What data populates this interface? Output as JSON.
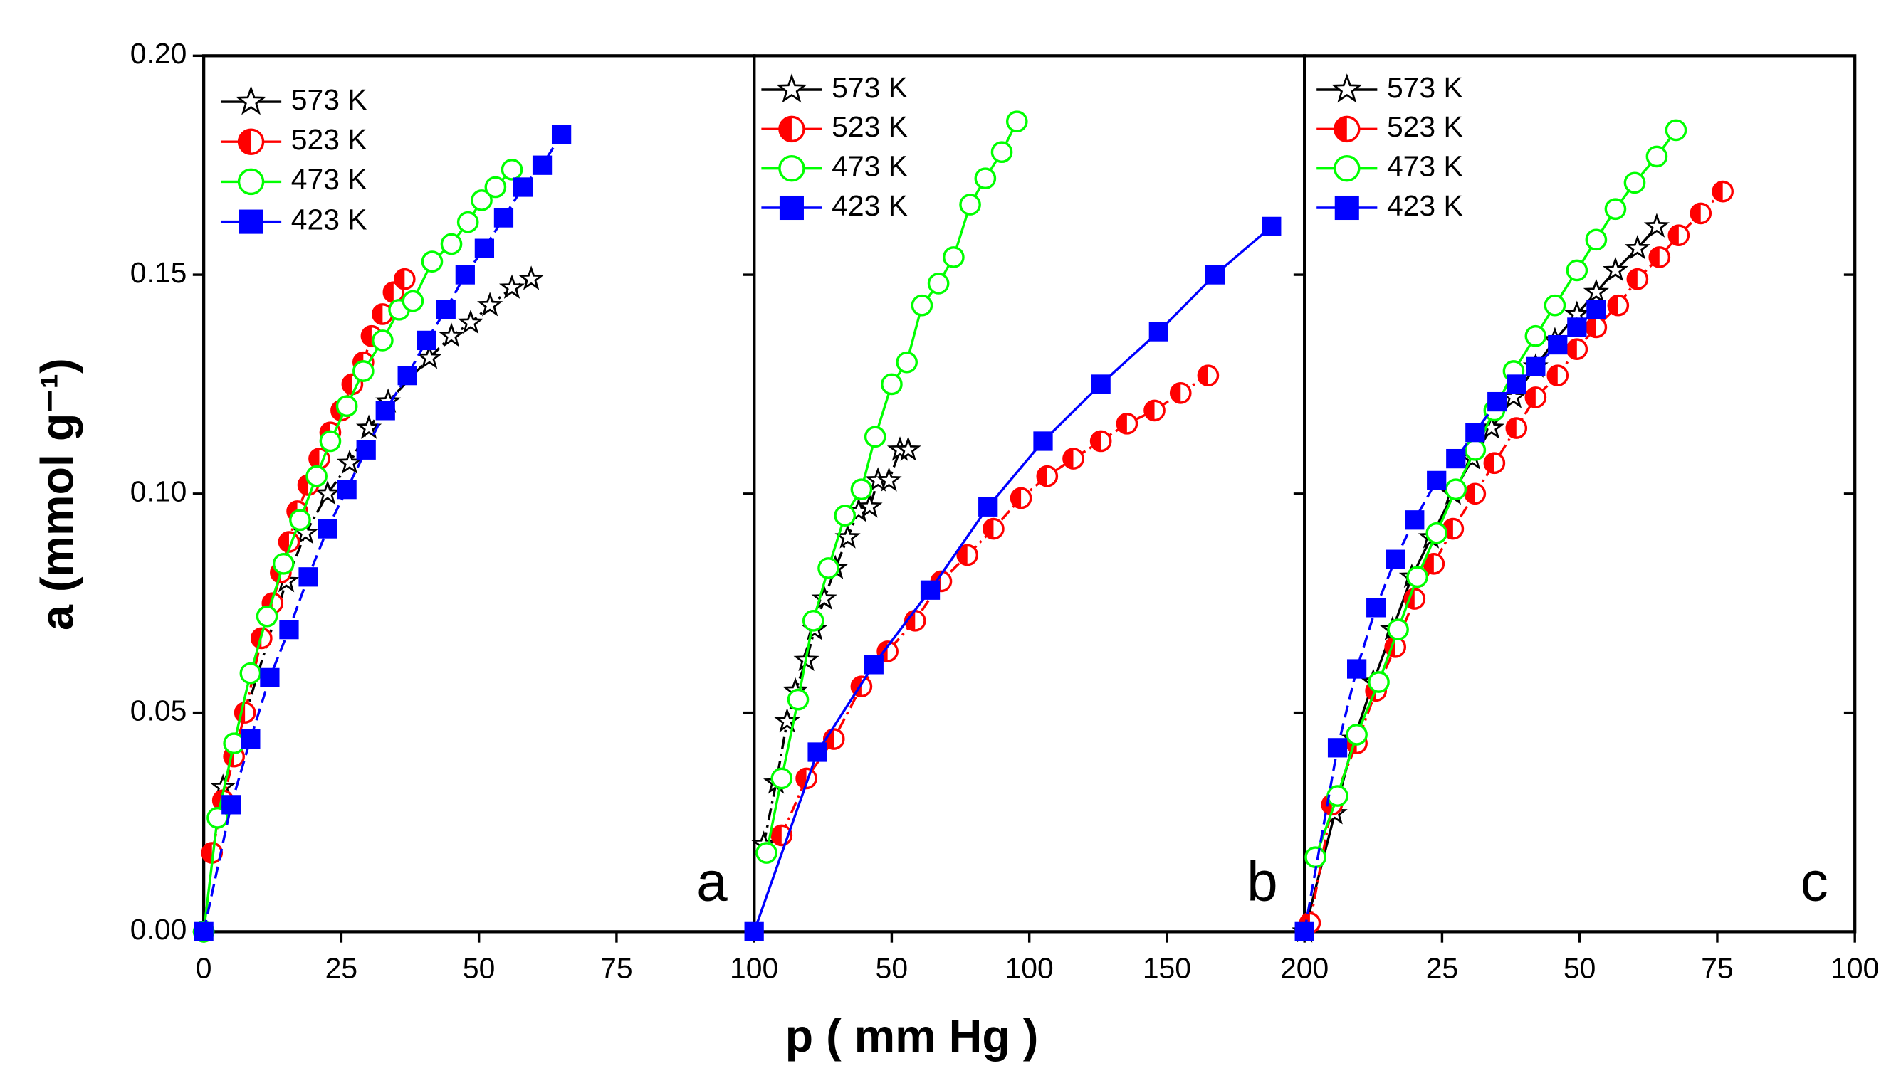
{
  "chart_data": [
    {
      "type": "line",
      "label": "a",
      "ylabel": "a (mmol g⁻¹)",
      "xlabel": "p ( mm Hg )",
      "xlim": [
        0,
        100
      ],
      "xticks": [
        0,
        25,
        50,
        75,
        100
      ],
      "ylim": [
        0,
        0.2
      ],
      "yticks": [
        {
          "value": 0,
          "label": "0.00"
        },
        0.05,
        {
          "value": 0.1,
          "label": "0.10"
        },
        0.15,
        {
          "value": 0.2,
          "label": "0.20"
        }
      ],
      "series": [
        {
          "name": "573 K",
          "color": "#000000",
          "marker": "star",
          "dash": "dashdot",
          "x": [
            3.5,
            15,
            18.5,
            22.5,
            26.5,
            30,
            33.5,
            41,
            45,
            48.5,
            52,
            56,
            59.5
          ],
          "values": [
            0.033,
            0.08,
            0.091,
            0.1,
            0.107,
            0.115,
            0.121,
            0.131,
            0.136,
            0.139,
            0.143,
            0.147,
            0.149
          ]
        },
        {
          "name": "523 K",
          "color": "#ff0000",
          "marker": "half",
          "dash": "dashdot",
          "x": [
            1.5,
            3.5,
            5.5,
            7.5,
            10.5,
            12.5,
            14,
            15.5,
            17,
            19,
            21,
            23,
            25,
            27,
            29,
            30.5,
            32.5,
            34.5,
            36.5
          ],
          "values": [
            0.018,
            0.03,
            0.04,
            0.05,
            0.067,
            0.075,
            0.082,
            0.089,
            0.096,
            0.102,
            0.108,
            0.114,
            0.119,
            0.125,
            0.13,
            0.136,
            0.141,
            0.146,
            0.149
          ]
        },
        {
          "name": "473 K",
          "color": "#00ff00",
          "marker": "open",
          "dash": "solid",
          "x": [
            0,
            2.5,
            5.5,
            8.5,
            11.5,
            14.5,
            17.5,
            20.5,
            23,
            26,
            29,
            32.5,
            35.5,
            38,
            41.5,
            45,
            48,
            50.5,
            53,
            56
          ],
          "values": [
            0,
            0.026,
            0.043,
            0.059,
            0.072,
            0.084,
            0.094,
            0.104,
            0.112,
            0.12,
            0.128,
            0.135,
            0.142,
            0.144,
            0.153,
            0.157,
            0.162,
            0.167,
            0.17,
            0.174
          ]
        },
        {
          "name": "423 K",
          "color": "#0000ff",
          "marker": "square",
          "dash": "dashed",
          "x": [
            0,
            5,
            8.5,
            12,
            15.5,
            19,
            22.5,
            26,
            29.5,
            33,
            37,
            40.5,
            44,
            47.5,
            51,
            54.5,
            58,
            61.5,
            65
          ],
          "values": [
            0,
            0.029,
            0.044,
            0.058,
            0.069,
            0.081,
            0.092,
            0.101,
            0.11,
            0.119,
            0.127,
            0.135,
            0.142,
            0.15,
            0.156,
            0.163,
            0.17,
            0.175,
            0.182
          ]
        }
      ]
    },
    {
      "type": "line",
      "label": "b",
      "xlim": [
        0,
        200
      ],
      "xticks": [
        50,
        100,
        150,
        200
      ],
      "ylim": [
        0,
        0.2
      ],
      "series": [
        {
          "name": "573 K",
          "color": "#000000",
          "marker": "star",
          "dash": "dashdot",
          "x": [
            3.5,
            8,
            12,
            15,
            19,
            22,
            25.5,
            29.5,
            34,
            38,
            42,
            45,
            49,
            53,
            56
          ],
          "values": [
            0.02,
            0.034,
            0.048,
            0.055,
            0.062,
            0.069,
            0.076,
            0.083,
            0.09,
            0.096,
            0.097,
            0.103,
            0.103,
            0.11,
            0.11
          ]
        },
        {
          "name": "523 K",
          "color": "#ff0000",
          "marker": "half",
          "dash": "dashdot",
          "x": [
            10,
            19,
            29,
            39,
            48.5,
            58.5,
            68,
            77.5,
            87,
            97,
            106.5,
            116,
            126,
            135.5,
            145.5,
            155,
            165
          ],
          "values": [
            0.022,
            0.035,
            0.044,
            0.056,
            0.064,
            0.071,
            0.08,
            0.086,
            0.092,
            0.099,
            0.104,
            0.108,
            0.112,
            0.116,
            0.119,
            0.123,
            0.127
          ]
        },
        {
          "name": "473 K",
          "color": "#00ff00",
          "marker": "open",
          "dash": "solid",
          "x": [
            4.5,
            10,
            16,
            21.5,
            27,
            33,
            39,
            44,
            50,
            55.5,
            61,
            67,
            72.5,
            78.5,
            84,
            90,
            95.5
          ],
          "values": [
            0.018,
            0.035,
            0.053,
            0.071,
            0.083,
            0.095,
            0.101,
            0.113,
            0.125,
            0.13,
            0.143,
            0.148,
            0.154,
            0.166,
            0.172,
            0.178,
            0.185
          ]
        },
        {
          "name": "423 K",
          "color": "#0000ff",
          "marker": "square",
          "dash": "solid",
          "x": [
            0,
            23,
            43.5,
            64,
            85,
            105,
            126,
            147,
            167.5,
            188
          ],
          "values": [
            0,
            0.041,
            0.061,
            0.078,
            0.097,
            0.112,
            0.125,
            0.137,
            0.15,
            0.161
          ]
        }
      ]
    },
    {
      "type": "line",
      "label": "c",
      "xlim": [
        0,
        100
      ],
      "xticks": [
        25,
        50,
        75,
        100
      ],
      "ylim": [
        0,
        0.2
      ],
      "series": [
        {
          "name": "573 K",
          "color": "#000000",
          "marker": "star",
          "dash": "solid",
          "x": [
            0,
            5.5,
            9,
            12.5,
            16,
            19.5,
            23,
            27,
            30.5,
            34,
            38,
            42,
            45.5,
            49.5,
            53,
            56.5,
            60.5,
            64
          ],
          "values": [
            0,
            0.027,
            0.044,
            0.057,
            0.069,
            0.081,
            0.09,
            0.1,
            0.108,
            0.115,
            0.122,
            0.129,
            0.135,
            0.141,
            0.146,
            0.151,
            0.156,
            0.161
          ]
        },
        {
          "name": "523 K",
          "color": "#ff0000",
          "marker": "half",
          "dash": "dashdot",
          "x": [
            1,
            5,
            9.5,
            13,
            16.5,
            20,
            23.5,
            27,
            31,
            34.5,
            38.5,
            42,
            46,
            49.5,
            53,
            57,
            60.5,
            64.5,
            68,
            72,
            76
          ],
          "values": [
            0.002,
            0.029,
            0.043,
            0.055,
            0.065,
            0.076,
            0.084,
            0.092,
            0.1,
            0.107,
            0.115,
            0.122,
            0.127,
            0.133,
            0.138,
            0.143,
            0.149,
            0.154,
            0.159,
            0.164,
            0.169
          ]
        },
        {
          "name": "473 K",
          "color": "#00ff00",
          "marker": "open",
          "dash": "solid",
          "x": [
            2,
            6,
            9.5,
            13.5,
            17,
            20.5,
            24,
            27.5,
            31,
            34.5,
            38,
            42,
            45.5,
            49.5,
            53,
            56.5,
            60,
            64,
            67.5
          ],
          "values": [
            0.017,
            0.031,
            0.045,
            0.057,
            0.069,
            0.081,
            0.091,
            0.101,
            0.11,
            0.119,
            0.128,
            0.136,
            0.143,
            0.151,
            0.158,
            0.165,
            0.171,
            0.177,
            0.183
          ]
        },
        {
          "name": "423 K",
          "color": "#0000ff",
          "marker": "square",
          "dash": "dashed",
          "x": [
            0,
            6,
            9.5,
            13,
            16.5,
            20,
            24,
            27.5,
            31,
            35,
            38.5,
            42,
            46,
            49.5,
            53
          ],
          "values": [
            0,
            0.042,
            0.06,
            0.074,
            0.085,
            0.094,
            0.103,
            0.108,
            0.114,
            0.121,
            0.125,
            0.129,
            0.134,
            0.138,
            0.142
          ]
        }
      ]
    }
  ]
}
